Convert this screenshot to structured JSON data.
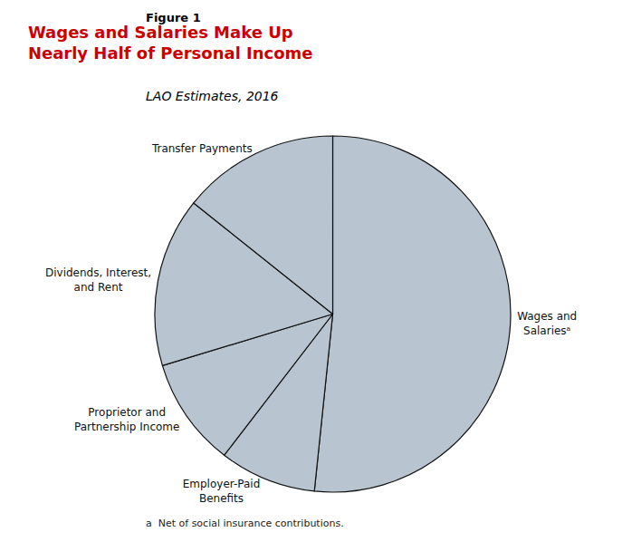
{
  "chart_data": {
    "type": "pie",
    "title": "Wages and Salaries Make Up\nNearly Half of Personal Income",
    "subtitle": "LAO Estimates, 2016",
    "annotations": [
      "Figure 1",
      "a  Net of social insurance contributions."
    ],
    "categories": [
      "Wages and\nSalariesᵃ",
      "Employer-Paid\nBenefits",
      "Proprietor and\nPartnership Income",
      "Dividends, Interest,\nand Rent",
      "Transfer Payments"
    ],
    "values": [
      47,
      8,
      9,
      14,
      13
    ],
    "colors": [
      "#b8c5d0",
      "#b8c5d0",
      "#b8c5d0",
      "#b8c5d0",
      "#b8c5d0"
    ]
  }
}
